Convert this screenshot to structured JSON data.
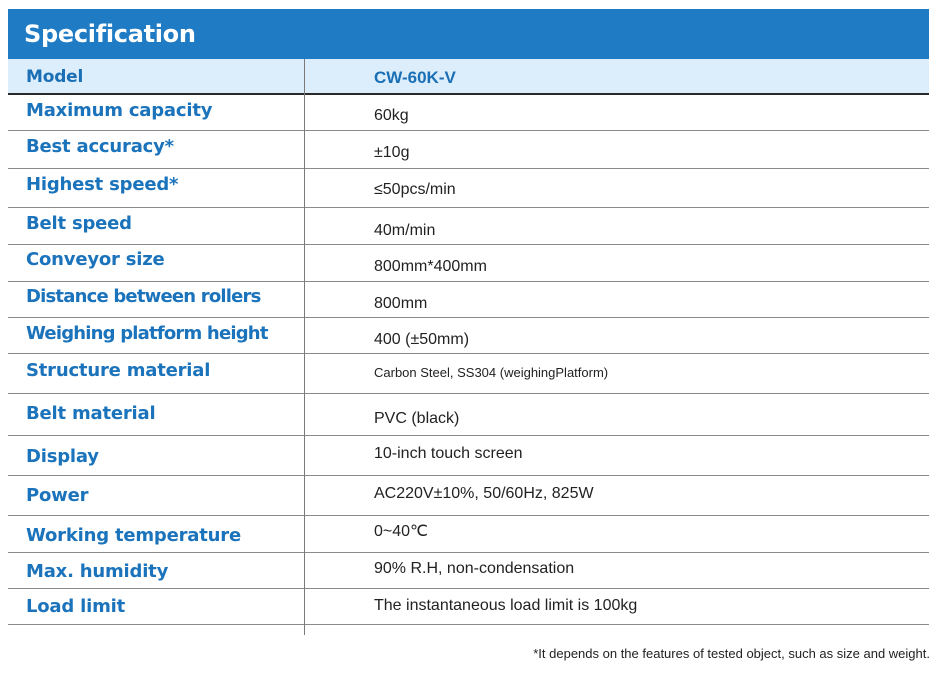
{
  "header": {
    "title": "Specification"
  },
  "table": {
    "rows": [
      {
        "label": "Model",
        "value": "CW-60K-V"
      },
      {
        "label": "Maximum capacity",
        "value": "60kg"
      },
      {
        "label": "Best accuracy*",
        "value": "±10g"
      },
      {
        "label": "Highest speed*",
        "value": "≤50pcs/min"
      },
      {
        "label": "Belt speed",
        "value": "40m/min"
      },
      {
        "label": "Conveyor size",
        "value": "800mm*400mm"
      },
      {
        "label": "Distance between rollers",
        "value": "800mm"
      },
      {
        "label": "Weighing platform height",
        "value": "400 (±50mm)"
      },
      {
        "label": "Structure material",
        "value": "Carbon Steel, SS304 (weighingPlatform)"
      },
      {
        "label": "Belt material",
        "value": "PVC (black)"
      },
      {
        "label": "Display",
        "value": "10-inch touch screen"
      },
      {
        "label": "Power",
        "value": "AC220V±10%, 50/60Hz, 825W"
      },
      {
        "label": "Working temperature",
        "value": "0~40℃"
      },
      {
        "label": "Max. humidity",
        "value": "90% R.H, non-condensation"
      },
      {
        "label": "Load limit",
        "value": "The instantaneous load limit is 100kg"
      }
    ]
  },
  "footnote": "*It depends on the features of tested object, such as size and weight.",
  "colors": {
    "header_bg": "#1e7bc4",
    "label_text": "#1a73bb",
    "model_row_bg": "#dceefb"
  }
}
